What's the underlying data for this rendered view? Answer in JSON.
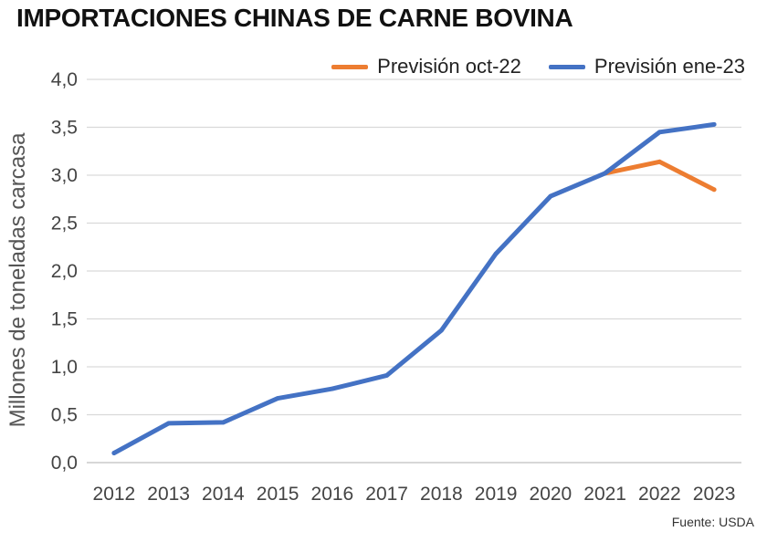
{
  "chart_data": {
    "type": "line",
    "title": "IMPORTACIONES CHINAS DE CARNE BOVINA",
    "ylabel": "Millones de toneladas carcasa",
    "xlabel": "",
    "categories": [
      "2012",
      "2013",
      "2014",
      "2015",
      "2016",
      "2017",
      "2018",
      "2019",
      "2020",
      "2021",
      "2022",
      "2023"
    ],
    "ylim": [
      0,
      4
    ],
    "yticks": [
      "0,0",
      "0,5",
      "1,0",
      "1,5",
      "2,0",
      "2,5",
      "3,0",
      "3,5",
      "4,0"
    ],
    "grid": true,
    "legend_position": "top-right",
    "series": [
      {
        "name": "Previsión oct-22",
        "color": "#ED7D31",
        "x": [
          "2021",
          "2022",
          "2023"
        ],
        "values": [
          3.02,
          3.14,
          2.85
        ]
      },
      {
        "name": "Previsión ene-23",
        "color": "#4472C4",
        "x": [
          "2012",
          "2013",
          "2014",
          "2015",
          "2016",
          "2017",
          "2018",
          "2019",
          "2020",
          "2021",
          "2022",
          "2023"
        ],
        "values": [
          0.1,
          0.41,
          0.42,
          0.67,
          0.77,
          0.91,
          1.38,
          2.18,
          2.78,
          3.02,
          3.45,
          3.53
        ]
      }
    ],
    "source": "Fuente: USDA"
  }
}
